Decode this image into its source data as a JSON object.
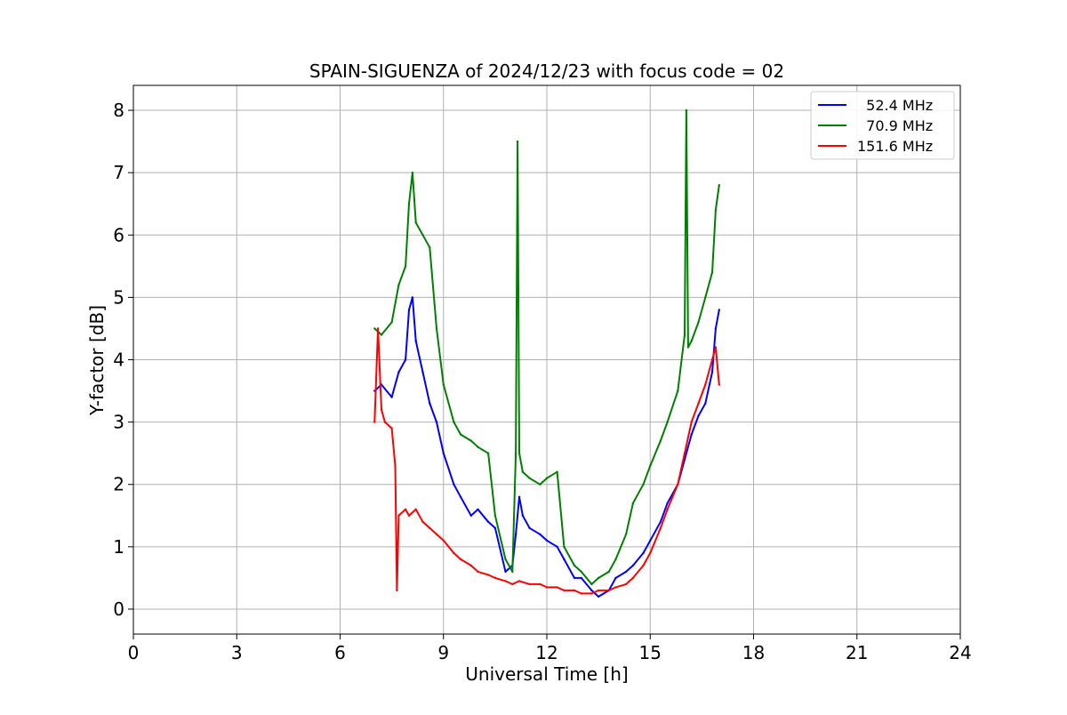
{
  "chart_data": {
    "type": "line",
    "title": "SPAIN-SIGUENZA of 2024/12/23 with focus code = 02",
    "xlabel": "Universal Time [h]",
    "ylabel": "Y-factor [dB]",
    "xlim": [
      0,
      24
    ],
    "ylim": [
      -0.4,
      8.4
    ],
    "xticks": [
      0,
      3,
      6,
      9,
      12,
      15,
      18,
      21,
      24
    ],
    "yticks": [
      0,
      1,
      2,
      3,
      4,
      5,
      6,
      7,
      8
    ],
    "xtick_labels": [
      "0",
      "3",
      "6",
      "9",
      "12",
      "15",
      "18",
      "21",
      "24"
    ],
    "ytick_labels": [
      "0",
      "1",
      "2",
      "3",
      "4",
      "5",
      "6",
      "7",
      "8"
    ],
    "grid": true,
    "legend_position": "top-right",
    "series": [
      {
        "name": "  52.4 MHz",
        "color": "#0000ff",
        "x": [
          7.0,
          7.2,
          7.5,
          7.7,
          7.9,
          8.0,
          8.1,
          8.2,
          8.4,
          8.6,
          8.8,
          9.0,
          9.3,
          9.5,
          9.8,
          10.0,
          10.3,
          10.5,
          10.8,
          11.0,
          11.1,
          11.2,
          11.3,
          11.5,
          11.8,
          12.0,
          12.3,
          12.5,
          12.8,
          13.0,
          13.3,
          13.5,
          13.8,
          14.0,
          14.3,
          14.5,
          14.8,
          15.0,
          15.3,
          15.5,
          15.8,
          16.0,
          16.2,
          16.4,
          16.6,
          16.8,
          16.9,
          17.0
        ],
        "y": [
          3.5,
          3.6,
          3.4,
          3.8,
          4.0,
          4.8,
          5.0,
          4.3,
          3.8,
          3.3,
          3.0,
          2.5,
          2.0,
          1.8,
          1.5,
          1.6,
          1.4,
          1.3,
          0.6,
          0.7,
          1.2,
          1.8,
          1.5,
          1.3,
          1.2,
          1.1,
          1.0,
          0.8,
          0.5,
          0.5,
          0.3,
          0.2,
          0.3,
          0.5,
          0.6,
          0.7,
          0.9,
          1.1,
          1.4,
          1.7,
          2.0,
          2.4,
          2.8,
          3.1,
          3.3,
          3.8,
          4.5,
          4.8
        ]
      },
      {
        "name": "  70.9 MHz",
        "color": "#008000",
        "x": [
          7.0,
          7.2,
          7.5,
          7.7,
          7.9,
          8.0,
          8.1,
          8.2,
          8.4,
          8.6,
          8.8,
          9.0,
          9.3,
          9.5,
          9.8,
          10.0,
          10.3,
          10.5,
          10.8,
          11.0,
          11.1,
          11.15,
          11.2,
          11.3,
          11.5,
          11.8,
          12.0,
          12.3,
          12.5,
          12.8,
          13.0,
          13.3,
          13.5,
          13.8,
          14.0,
          14.3,
          14.5,
          14.8,
          15.0,
          15.3,
          15.5,
          15.8,
          16.0,
          16.05,
          16.1,
          16.2,
          16.4,
          16.6,
          16.8,
          16.9,
          17.0
        ],
        "y": [
          4.5,
          4.4,
          4.6,
          5.2,
          5.5,
          6.5,
          7.0,
          6.2,
          6.0,
          5.8,
          4.5,
          3.6,
          3.0,
          2.8,
          2.7,
          2.6,
          2.5,
          1.5,
          0.8,
          0.6,
          2.5,
          7.5,
          2.5,
          2.2,
          2.1,
          2.0,
          2.1,
          2.2,
          1.0,
          0.7,
          0.6,
          0.4,
          0.5,
          0.6,
          0.8,
          1.2,
          1.7,
          2.0,
          2.3,
          2.7,
          3.0,
          3.5,
          4.4,
          8.0,
          4.2,
          4.3,
          4.6,
          5.0,
          5.4,
          6.4,
          6.8
        ]
      },
      {
        "name": "151.6 MHz",
        "color": "#ff0000",
        "x": [
          7.0,
          7.1,
          7.2,
          7.3,
          7.5,
          7.6,
          7.65,
          7.7,
          7.9,
          8.0,
          8.2,
          8.4,
          8.6,
          8.8,
          9.0,
          9.3,
          9.5,
          9.8,
          10.0,
          10.3,
          10.5,
          10.8,
          11.0,
          11.2,
          11.5,
          11.8,
          12.0,
          12.3,
          12.5,
          12.8,
          13.0,
          13.3,
          13.5,
          13.8,
          14.0,
          14.3,
          14.5,
          14.8,
          15.0,
          15.3,
          15.5,
          15.8,
          16.0,
          16.2,
          16.4,
          16.6,
          16.8,
          16.9,
          17.0
        ],
        "y": [
          3.0,
          4.5,
          3.2,
          3.0,
          2.9,
          2.3,
          0.3,
          1.5,
          1.6,
          1.5,
          1.6,
          1.4,
          1.3,
          1.2,
          1.1,
          0.9,
          0.8,
          0.7,
          0.6,
          0.55,
          0.5,
          0.45,
          0.4,
          0.45,
          0.4,
          0.4,
          0.35,
          0.35,
          0.3,
          0.3,
          0.25,
          0.25,
          0.3,
          0.3,
          0.35,
          0.4,
          0.5,
          0.7,
          0.9,
          1.3,
          1.6,
          2.0,
          2.5,
          3.0,
          3.3,
          3.6,
          4.0,
          4.2,
          3.6
        ]
      }
    ]
  }
}
